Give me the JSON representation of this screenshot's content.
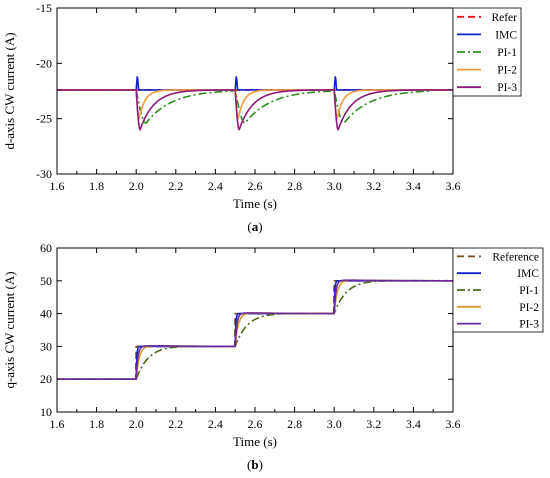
{
  "chart_data": [
    {
      "type": "line",
      "panel_label": "(a)",
      "panel_letter": "a",
      "xlabel": "Time (s)",
      "ylabel": "d-axis CW current (A)",
      "xlim": [
        1.6,
        3.6
      ],
      "ylim": [
        -30,
        -15
      ],
      "xticks": [
        "1.6",
        "1.8",
        "2.0",
        "2.2",
        "2.4",
        "2.6",
        "2.8",
        "3.0",
        "3.2",
        "3.4",
        "3.6"
      ],
      "yticks": [
        "-15",
        "-20",
        "-25",
        "-30"
      ],
      "legend_position": "top-right",
      "disturbance_times": [
        2.0,
        2.5,
        3.0
      ],
      "series": [
        {
          "name": "Refer",
          "color": "#ee1111",
          "dash": "dashed",
          "kind": "const",
          "value": -22.4
        },
        {
          "name": "IMC",
          "color": "#1122cc",
          "dash": "solid",
          "kind": "spike",
          "value": -22.4,
          "spike_peak": -21.0,
          "spike_duration": 0.012
        },
        {
          "name": "PI-1",
          "color": "#2e8b22",
          "dash": "dashdot",
          "kind": "dip",
          "value": -22.4,
          "dip_min": -25.4,
          "dip_time": 0.05,
          "recovery": 0.13
        },
        {
          "name": "PI-2",
          "color": "#f29a3d",
          "dash": "solid",
          "kind": "dip",
          "value": -22.4,
          "dip_min": -25.0,
          "dip_time": 0.015,
          "recovery": 0.03
        },
        {
          "name": "PI-3",
          "color": "#8b1a7a",
          "dash": "solid",
          "kind": "dip",
          "value": -22.4,
          "dip_min": -26.0,
          "dip_time": 0.02,
          "recovery": 0.07
        }
      ]
    },
    {
      "type": "line",
      "panel_label": "(b)",
      "panel_letter": "b",
      "xlabel": "Time (s)",
      "ylabel": "q-axis CW current (A)",
      "xlim": [
        1.6,
        3.6
      ],
      "ylim": [
        10,
        60
      ],
      "xticks": [
        "1.6",
        "1.8",
        "2.0",
        "2.2",
        "2.4",
        "2.6",
        "2.8",
        "3.0",
        "3.2",
        "3.4",
        "3.6"
      ],
      "yticks": [
        "60",
        "50",
        "40",
        "30",
        "20",
        "10"
      ],
      "legend_position": "top-right",
      "step_times": [
        2.0,
        2.5,
        3.0
      ],
      "step_levels": [
        20,
        30,
        40,
        50
      ],
      "series": [
        {
          "name": "Reference",
          "color": "#7a4a1c",
          "dash": "dashed",
          "kind": "step",
          "overshoot": 0,
          "tau": 0
        },
        {
          "name": "IMC",
          "color": "#1122cc",
          "dash": "solid",
          "kind": "step",
          "overshoot": 0,
          "tau": 0.003
        },
        {
          "name": "PI-1",
          "color": "#4a6a1a",
          "dash": "dashdot",
          "kind": "step",
          "overshoot": 1.0,
          "tau": 0.06
        },
        {
          "name": "PI-2",
          "color": "#d99a2b",
          "dash": "solid",
          "kind": "step",
          "overshoot": 0.5,
          "tau": 0.015
        },
        {
          "name": "PI-3",
          "color": "#6a2a9a",
          "dash": "solid",
          "kind": "step",
          "overshoot": 0.4,
          "tau": 0.008
        }
      ]
    }
  ]
}
